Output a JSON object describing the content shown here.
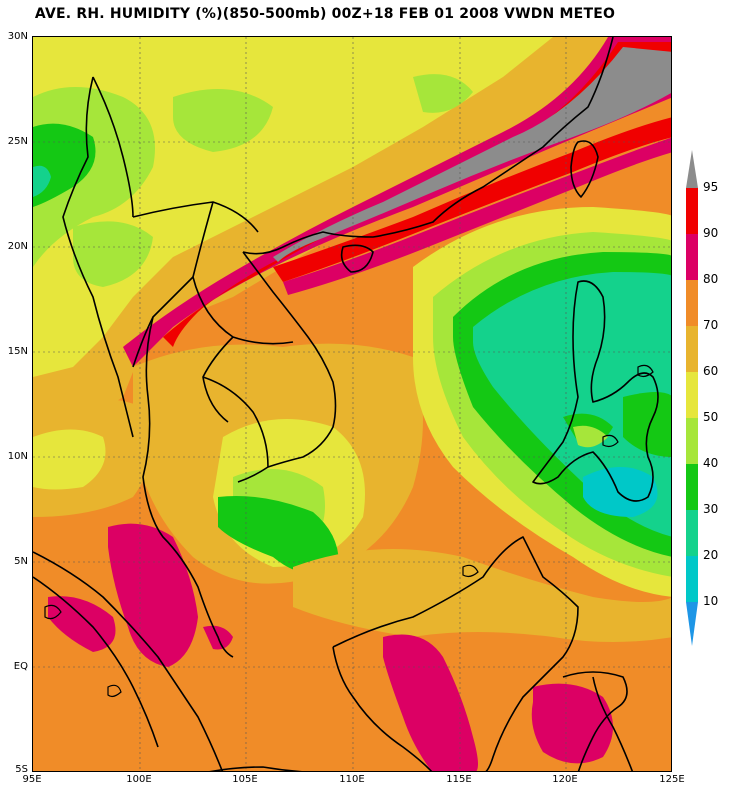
{
  "title": "AVE. RH. HUMIDITY (%)(850-500mb) 00Z+18 FEB 01 2008 VWDN METEO",
  "axes": {
    "x_ticks": [
      "95E",
      "100E",
      "105E",
      "110E",
      "115E",
      "120E",
      "125E"
    ],
    "y_ticks": [
      "30N",
      "25N",
      "20N",
      "15N",
      "10N",
      "5N",
      "EQ",
      "5S"
    ]
  },
  "colorbar": {
    "levels": [
      "95",
      "90",
      "80",
      "70",
      "60",
      "50",
      "40",
      "30",
      "20",
      "10"
    ],
    "colors": {
      "above_95": "#8c8c8c",
      "90_95": "#f00000",
      "80_90": "#dc0064",
      "70_80": "#f08c28",
      "60_70": "#e8b42e",
      "50_60": "#e6e63c",
      "40_50": "#a6e63a",
      "30_40": "#14c814",
      "20_30": "#14d28c",
      "10_20": "#00c8c8",
      "below_10": "#1e96e6"
    }
  }
}
